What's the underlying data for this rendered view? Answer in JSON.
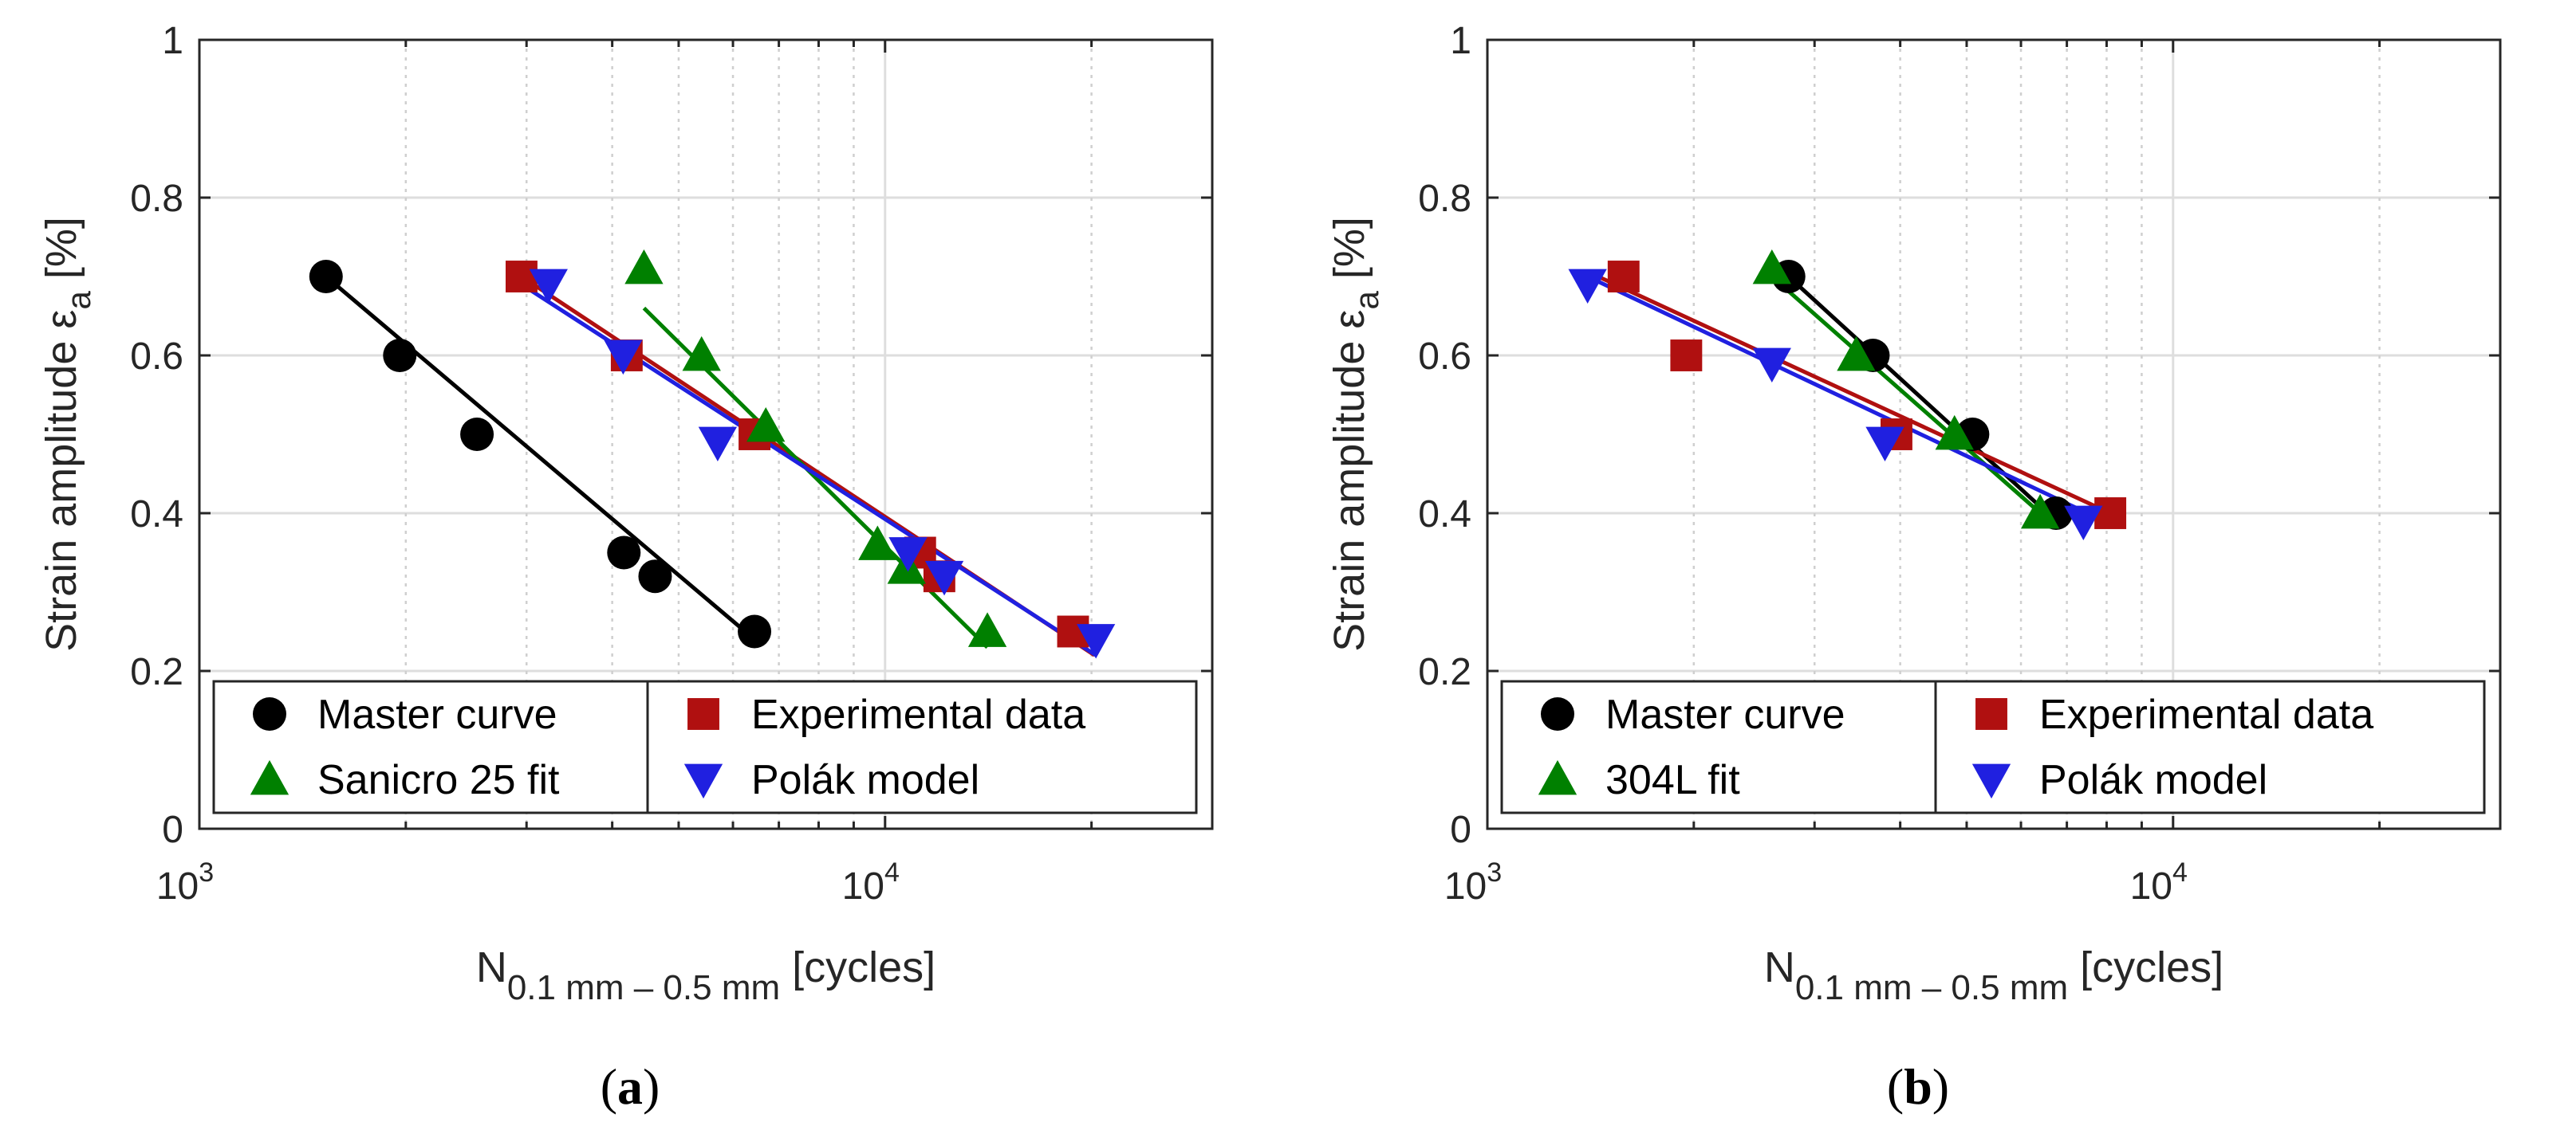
{
  "chart_data": [
    {
      "type": "scatter",
      "panel_label": "a",
      "xscale": "log",
      "xlim": [
        1000,
        30000
      ],
      "ylim": [
        0,
        1
      ],
      "yticks": [
        0,
        0.2,
        0.4,
        0.6,
        0.8,
        1
      ],
      "ytick_labels": [
        "0",
        "0.2",
        "0.4",
        "0.6",
        "0.8",
        "1"
      ],
      "xticks": [
        1000,
        10000
      ],
      "xtick_labels": [
        {
          "base": "10",
          "exp": "3"
        },
        {
          "base": "10",
          "exp": "4"
        }
      ],
      "ylabel": {
        "main": "Strain amplitude ε",
        "sub": "a",
        "unit": " [%]"
      },
      "xlabel": {
        "main": "N",
        "sub": "0.1 mm – 0.5 mm",
        "unit": " [cycles]"
      },
      "grid": true,
      "legend_position": "bottom",
      "series": [
        {
          "name": "Master curve",
          "marker": "circle",
          "color": "#000000",
          "points": [
            [
              1530,
              0.7
            ],
            [
              1960,
              0.6
            ],
            [
              2540,
              0.5
            ],
            [
              4160,
              0.35
            ],
            [
              4620,
              0.32
            ],
            [
              6450,
              0.25
            ]
          ],
          "fit": [
            [
              1530,
              0.7
            ],
            [
              6450,
              0.24
            ]
          ]
        },
        {
          "name": "Experimental data",
          "marker": "square",
          "color": "#b01010",
          "points": [
            [
              2950,
              0.7
            ],
            [
              4200,
              0.6
            ],
            [
              6450,
              0.5
            ],
            [
              11250,
              0.35
            ],
            [
              12000,
              0.32
            ],
            [
              18800,
              0.25
            ]
          ],
          "fit": [
            [
              2950,
              0.7
            ],
            [
              20200,
              0.22
            ]
          ]
        },
        {
          "name": "Sanicro 25 fit",
          "marker": "triangle-up",
          "color": "#008000",
          "points": [
            [
              4450,
              0.71
            ],
            [
              5400,
              0.6
            ],
            [
              6700,
              0.51
            ],
            [
              9750,
              0.36
            ],
            [
              10750,
              0.33
            ],
            [
              14100,
              0.25
            ]
          ],
          "fit": [
            [
              4450,
              0.66
            ],
            [
              14100,
              0.23
            ]
          ]
        },
        {
          "name": "Polák model",
          "marker": "triangle-down",
          "color": "#2020e0",
          "points": [
            [
              3230,
              0.69
            ],
            [
              4150,
              0.6
            ],
            [
              5700,
              0.49
            ],
            [
              10800,
              0.35
            ],
            [
              12200,
              0.32
            ],
            [
              20300,
              0.24
            ]
          ],
          "fit": [
            [
              2950,
              0.69
            ],
            [
              20300,
              0.22
            ]
          ]
        }
      ]
    },
    {
      "type": "scatter",
      "panel_label": "b",
      "xscale": "log",
      "xlim": [
        1000,
        30000
      ],
      "ylim": [
        0,
        1
      ],
      "yticks": [
        0,
        0.2,
        0.4,
        0.6,
        0.8,
        1
      ],
      "ytick_labels": [
        "0",
        "0.2",
        "0.4",
        "0.6",
        "0.8",
        "1"
      ],
      "xticks": [
        1000,
        10000
      ],
      "xtick_labels": [
        {
          "base": "10",
          "exp": "3"
        },
        {
          "base": "10",
          "exp": "4"
        }
      ],
      "ylabel": {
        "main": "Strain amplitude ε",
        "sub": "a",
        "unit": " [%]"
      },
      "xlabel": {
        "main": "N",
        "sub": "0.1 mm – 0.5 mm",
        "unit": " [cycles]"
      },
      "grid": true,
      "legend_position": "bottom",
      "series": [
        {
          "name": "Master curve",
          "marker": "circle",
          "color": "#000000",
          "points": [
            [
              2750,
              0.7
            ],
            [
              3650,
              0.6
            ],
            [
              5100,
              0.5
            ],
            [
              6750,
              0.4
            ]
          ],
          "fit": [
            [
              2750,
              0.7
            ],
            [
              6750,
              0.39
            ]
          ]
        },
        {
          "name": "Experimental data",
          "marker": "square",
          "color": "#b01010",
          "points": [
            [
              1580,
              0.7
            ],
            [
              1950,
              0.6
            ],
            [
              3950,
              0.5
            ],
            [
              8100,
              0.4
            ]
          ],
          "fit": [
            [
              1450,
              0.7
            ],
            [
              8100,
              0.4
            ]
          ]
        },
        {
          "name": "304L fit",
          "marker": "triangle-up",
          "color": "#008000",
          "points": [
            [
              2600,
              0.71
            ],
            [
              3450,
              0.6
            ],
            [
              4800,
              0.5
            ],
            [
              6400,
              0.4
            ]
          ],
          "fit": [
            [
              2600,
              0.7
            ],
            [
              6600,
              0.39
            ]
          ]
        },
        {
          "name": "Polák model",
          "marker": "triangle-down",
          "color": "#2020e0",
          "points": [
            [
              1400,
              0.69
            ],
            [
              2600,
              0.59
            ],
            [
              3800,
              0.49
            ],
            [
              7400,
              0.39
            ]
          ],
          "fit": [
            [
              1400,
              0.7
            ],
            [
              7500,
              0.4
            ]
          ]
        }
      ]
    }
  ]
}
